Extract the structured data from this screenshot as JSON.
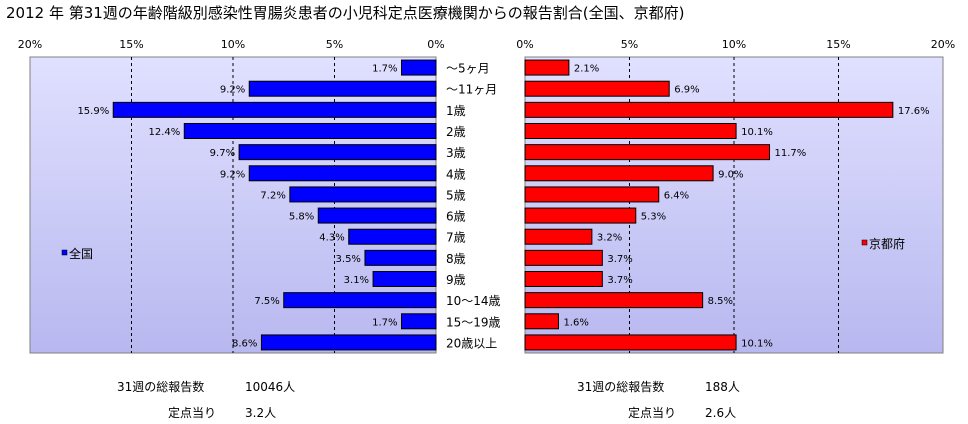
{
  "title": "2012 年 第31週の年齢階級別感染性胃腸炎患者の小児科定点医療機関からの報告割合(全国、京都府)",
  "categories": [
    "～5ヶ月",
    "～11ヶ月",
    "1歳",
    "2歳",
    "3歳",
    "4歳",
    "5歳",
    "6歳",
    "7歳",
    "8歳",
    "9歳",
    "10～14歳",
    "15～19歳",
    "20歳以上"
  ],
  "axis_ticks": [
    "20%",
    "15%",
    "10%",
    "5%",
    "0%"
  ],
  "axis_ticks_right": [
    "0%",
    "5%",
    "10%",
    "15%",
    "20%"
  ],
  "colors": {
    "national": "#0000FF",
    "kyoto": "#FF0000",
    "plot_bg_top": "#E0E0FF",
    "plot_bg_bottom": "#B8B8F0"
  },
  "chart_data": [
    {
      "type": "bar",
      "orientation": "horizontal-reversed",
      "title": "全国",
      "categories": [
        "～5ヶ月",
        "～11ヶ月",
        "1歳",
        "2歳",
        "3歳",
        "4歳",
        "5歳",
        "6歳",
        "7歳",
        "8歳",
        "9歳",
        "10～14歳",
        "15～19歳",
        "20歳以上"
      ],
      "series": [
        {
          "name": "全国",
          "values": [
            1.7,
            9.2,
            15.9,
            12.4,
            9.7,
            9.2,
            7.2,
            5.8,
            4.3,
            3.5,
            3.1,
            7.5,
            1.7,
            8.6
          ]
        }
      ],
      "xlim": [
        0,
        20
      ],
      "legend": "left",
      "grid": true
    },
    {
      "type": "bar",
      "orientation": "horizontal",
      "title": "京都府",
      "categories": [
        "～5ヶ月",
        "～11ヶ月",
        "1歳",
        "2歳",
        "3歳",
        "4歳",
        "5歳",
        "6歳",
        "7歳",
        "8歳",
        "9歳",
        "10～14歳",
        "15～19歳",
        "20歳以上"
      ],
      "series": [
        {
          "name": "京都府",
          "values": [
            2.1,
            6.9,
            17.6,
            10.1,
            11.7,
            9.0,
            6.4,
            5.3,
            3.2,
            3.7,
            3.7,
            8.5,
            1.6,
            10.1
          ]
        }
      ],
      "xlim": [
        0,
        20
      ],
      "legend": "right",
      "grid": true
    }
  ],
  "stats": {
    "national": {
      "week_total_label": "31週の総報告数",
      "week_total_value": "10046人",
      "per_site_label": "定点当り",
      "per_site_value": "3.2人"
    },
    "kyoto": {
      "week_total_label": "31週の総報告数",
      "week_total_value": "188人",
      "per_site_label": "定点当り",
      "per_site_value": "2.6人"
    }
  }
}
